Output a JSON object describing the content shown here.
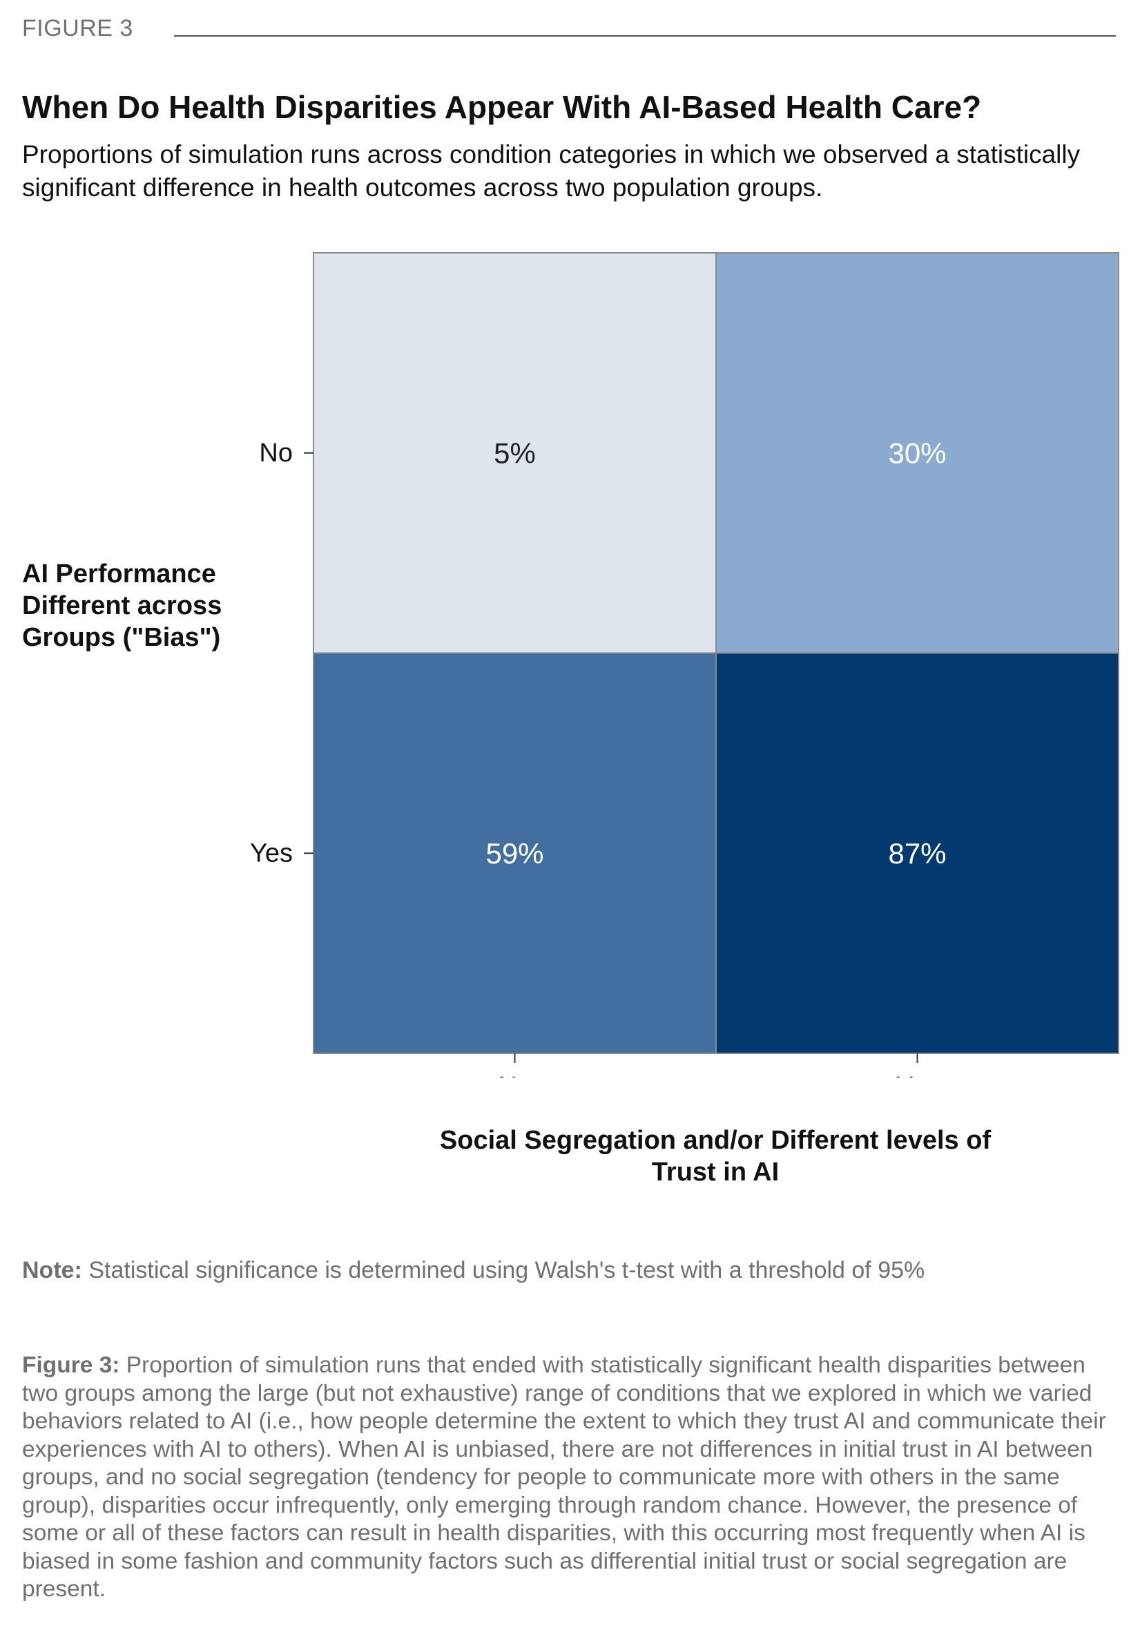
{
  "figure_label": "FIGURE 3",
  "title": "When Do Health Disparities Appear With AI-Based Health Care?",
  "subtitle": "Proportions of simulation runs across condition categories in which we observed a statistically significant difference in health outcomes across two population groups.",
  "note": {
    "label": "Note:",
    "text": " Statistical significance is determined using Walsh's t-test with a threshold of 95%"
  },
  "caption": {
    "label": "Figure 3:",
    "text": " Proportion of simulation runs that ended with statistically significant health disparities between two groups among the large (but not exhaustive) range of conditions that we explored in which we varied behaviors related to AI (i.e., how people determine the extent to which they trust AI and communicate their experiences with AI to others). When AI is unbiased, there are not differences in initial trust in AI between groups, and no social segregation (tendency for people to communicate more with others in the same group), disparities occur infrequently, only emerging through random chance. However, the presence of some or all of these factors can result in health disparities, with this occurring most frequently when AI is biased in some fashion and community factors such as differential initial trust or social segregation are present."
  },
  "chart_data": {
    "type": "heatmap",
    "x_categories": [
      "No",
      "Yes"
    ],
    "y_categories": [
      "No",
      "Yes"
    ],
    "xlabel": "Social Segregation and/or Different levels of Trust in AI",
    "ylabel": "AI Performance Different across Groups (\"Bias\")",
    "values": [
      [
        5,
        30
      ],
      [
        59,
        87
      ]
    ],
    "value_labels": [
      [
        "5%",
        "30%"
      ],
      [
        "59%",
        "87%"
      ]
    ],
    "unit": "%",
    "colors": [
      [
        "#dfe5ed",
        "#8aabcf"
      ],
      [
        "#426fa0",
        "#023a6f"
      ]
    ],
    "label_colors": [
      [
        "#222222",
        "#ffffff"
      ],
      [
        "#ffffff",
        "#ffffff"
      ]
    ],
    "grid_lines": "#8a8a8a"
  }
}
